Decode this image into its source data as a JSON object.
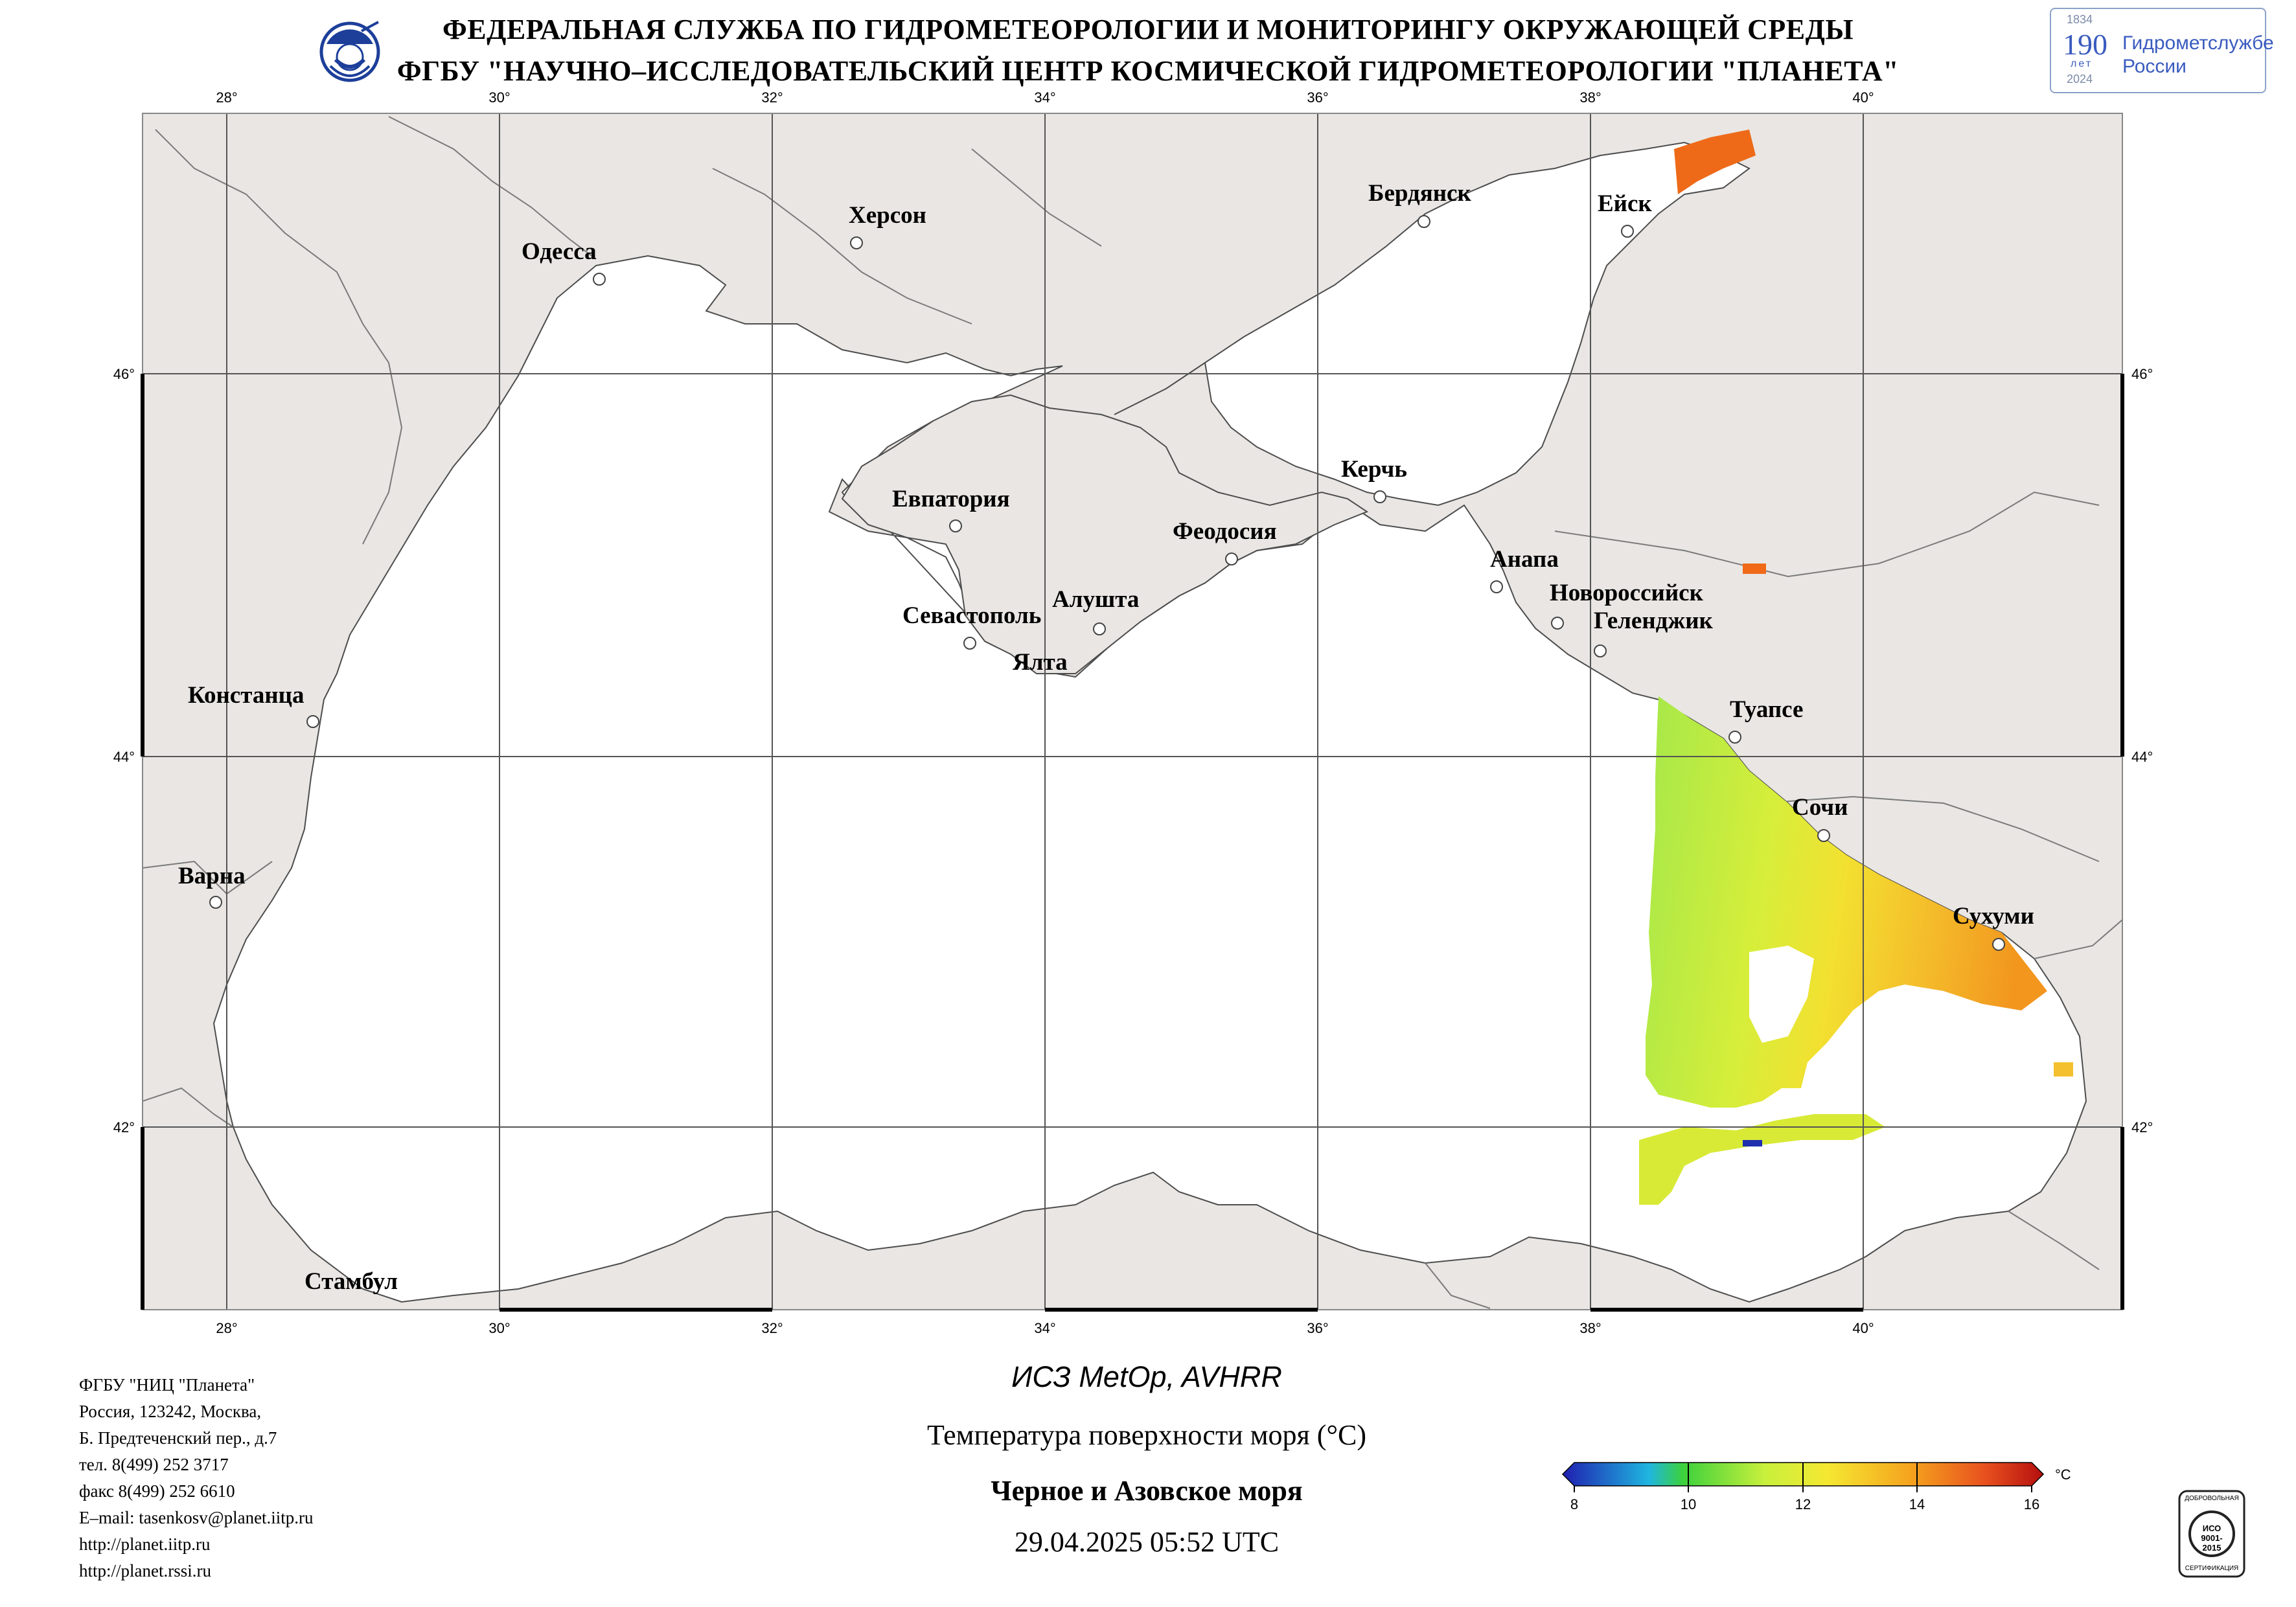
{
  "header": {
    "line1": "ФЕДЕРАЛЬНАЯ СЛУЖБА ПО ГИДРОМЕТЕОРОЛОГИИ И МОНИТОРИНГУ ОКРУЖАЮЩЕЙ СРЕДЫ",
    "line2": "ФГБУ \"НАУЧНО–ИССЛЕДОВАТЕЛЬСКИЙ ЦЕНТР КОСМИЧЕСКОЙ ГИДРОМЕТЕОРОЛОГИИ \"ПЛАНЕТА\""
  },
  "anniversary_logo": {
    "years": "1834",
    "years_end": "2024",
    "number": "190",
    "word": "лет",
    "text1": "Гидрометслужбе",
    "text2": "России"
  },
  "map": {
    "lon_labels": [
      "28°",
      "30°",
      "32°",
      "34°",
      "36°",
      "38°",
      "40°"
    ],
    "lat_labels": [
      "46°",
      "44°",
      "42°"
    ],
    "colors": {
      "land": "#e9e6e3",
      "sea": "#ffffff",
      "border": "#7a7a7a",
      "grid": "#555555"
    },
    "cities": [
      {
        "name": "Херсон"
      },
      {
        "name": "Одесса"
      },
      {
        "name": "Бердянск"
      },
      {
        "name": "Ейск"
      },
      {
        "name": "Керчь"
      },
      {
        "name": "Евпатория"
      },
      {
        "name": "Феодосия"
      },
      {
        "name": "Анапа"
      },
      {
        "name": "Новороссийск"
      },
      {
        "name": "Геленджик"
      },
      {
        "name": "Алушта"
      },
      {
        "name": "Севастополь"
      },
      {
        "name": "Ялта"
      },
      {
        "name": "Констанца"
      },
      {
        "name": "Туапсе"
      },
      {
        "name": "Сочи"
      },
      {
        "name": "Варна"
      },
      {
        "name": "Сухуми"
      },
      {
        "name": "Стамбул"
      }
    ]
  },
  "footer_info": [
    "ФГБУ \"НИЦ \"Планета\"",
    "Россия, 123242, Москва,",
    "Б. Предтеченский пер., д.7",
    "тел. 8(499) 252 3717",
    "факс 8(499) 252 6610",
    "E–mail: tasenkosv@planet.iitp.ru",
    "http://planet.iitp.ru",
    "http://planet.rssi.ru"
  ],
  "titles": {
    "satellite": "ИСЗ MetOp, AVHRR",
    "product": "Температура поверхности моря (°C)",
    "region": "Черное и Азовское моря",
    "datetime": "29.04.2025 05:52 UTC"
  },
  "colorbar": {
    "min": 8,
    "max": 16,
    "ticks": [
      "8",
      "10",
      "12",
      "14",
      "16"
    ],
    "unit": "°C",
    "colors": [
      "#1f1fb0",
      "#1fb6e0",
      "#3cd13c",
      "#c8f03c",
      "#f5e832",
      "#f5a51e",
      "#e8501e",
      "#b40f0f"
    ]
  },
  "iso_badge": {
    "top": "ДОБРОВОЛЬНАЯ",
    "mid": "ИСО 9001-2015",
    "bottom": "СЕРТИФИКАЦИЯ"
  }
}
